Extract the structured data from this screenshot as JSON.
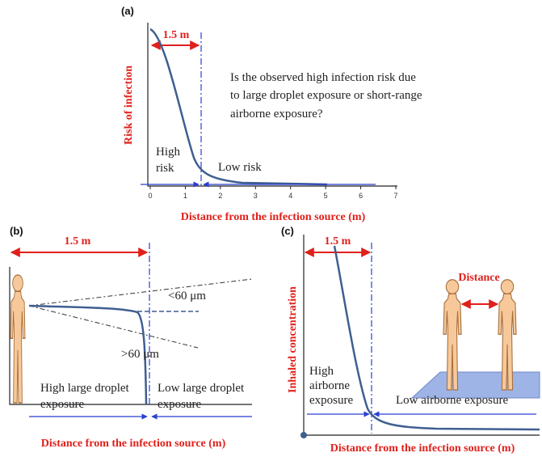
{
  "panels": [
    {
      "label": "(a)",
      "y_axis_label": "Risk of infection",
      "x_axis_label": "Distance from the infection source (m)",
      "distance_label": "1.5 m",
      "xticks": [
        0,
        1,
        2,
        3,
        4,
        5,
        6,
        7
      ],
      "question": [
        "Is the observed high infection risk due",
        "to large droplet exposure or short-range",
        "airborne exposure?"
      ],
      "near_region": [
        "High",
        "risk"
      ],
      "far_region": [
        "Low risk"
      ]
    },
    {
      "label": "(b)",
      "x_axis_label": "Distance from the infection source (m)",
      "distance_label": "1.5 m",
      "small_droplets": "<60 μm",
      "large_droplets": ">60 μm",
      "near_region": [
        "High large droplet",
        "exposure"
      ],
      "far_region": [
        "Low large droplet",
        "exposure"
      ]
    },
    {
      "label": "(c)",
      "y_axis_label": "Inhaled concentration",
      "x_axis_label": "Distance from the infection source (m)",
      "distance_label": "1.5 m",
      "inset_label": "Distance",
      "near_region": [
        "High",
        "airborne",
        "exposure"
      ],
      "far_region": [
        "Low airborne exposure"
      ]
    }
  ]
}
